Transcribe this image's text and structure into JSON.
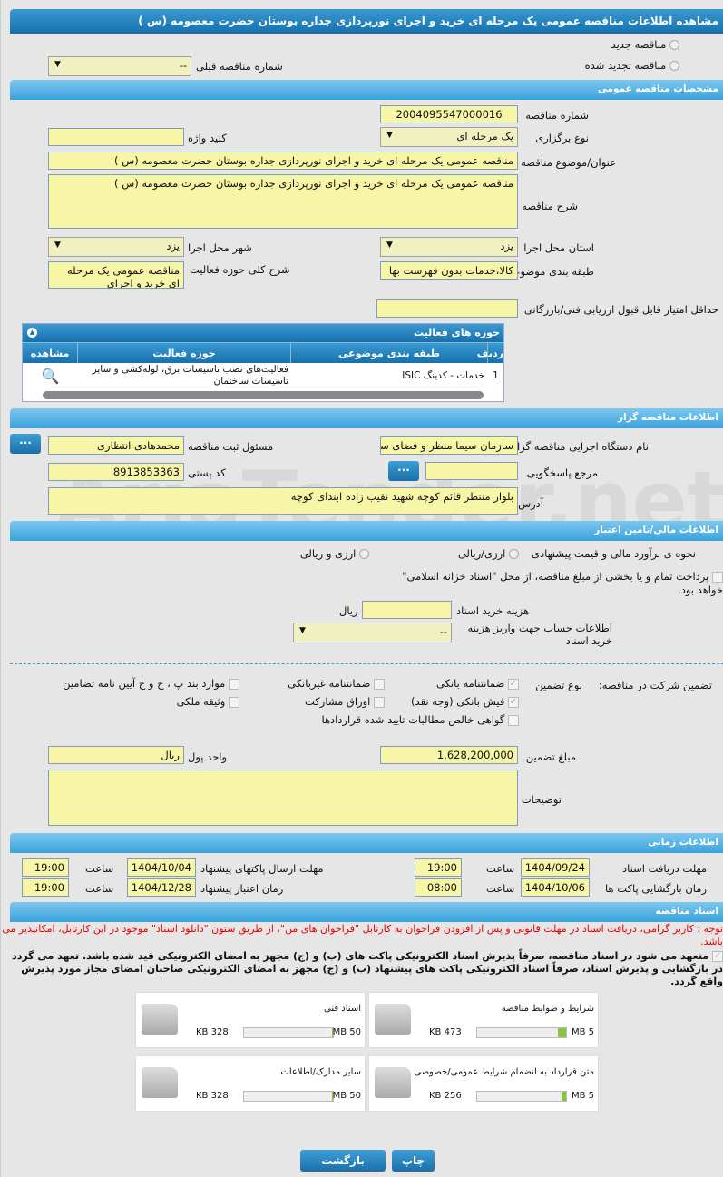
{
  "title": "مشاهده اطلاعات مناقصه عمومی یک مرحله ای خرید و اجرای نورپردازی جداره بوستان حضرت معصومه (س )",
  "radios": {
    "new": "مناقصه جدید",
    "renewed": "مناقصه تجدید شده"
  },
  "prev_number": {
    "label": "شماره مناقصه قبلی",
    "value": "--"
  },
  "general": {
    "header": "مشخصات مناقصه عمومی",
    "number_label": "شماره مناقصه",
    "number": "2004095547000016",
    "type_label": "نوع برگزاری",
    "type": "یک مرحله ای",
    "keyword_label": "کلید واژه",
    "keyword": "",
    "subject_label": "عنوان/موضوع مناقصه",
    "subject": "مناقصه عمومی یک مرحله ای خرید و اجرای نورپردازی جداره بوستان حضرت معصومه (س )",
    "desc_label": "شرح مناقصه",
    "desc": "مناقصه عمومی یک مرحله ای خرید و اجرای نورپردازی جداره بوستان حضرت معصومه (س )",
    "province_label": "استان محل اجرا",
    "province": "یزد",
    "city_label": "شهر محل اجرا",
    "city": "یزد",
    "category_label": "طبقه بندی موضوعی",
    "category": "کالا،خدمات بدون فهرست بها",
    "scope_label": "شرح کلی حوزه فعالیت",
    "scope": "مناقصه عمومی یک مرحله ای خرید و اجرای نورپردازی",
    "min_score_label": "حداقل امتیاز قابل قبول ارزیابی فنی/بازرگانی",
    "min_score": ""
  },
  "activity_grid": {
    "title": "حوزه های فعالیت",
    "columns": [
      "ردیف",
      "طبقه بندی موضوعی",
      "حوزه فعالیت",
      "مشاهده"
    ],
    "rows": [
      {
        "index": "1",
        "category": "خدمات - کدینگ ISIC",
        "activity": "فعالیت‌های نصب تاسیسات برق، لوله‌کشی و سایر تاسیسات ساختمان"
      }
    ]
  },
  "organizer": {
    "header": "اطلاعات مناقصه گزار",
    "org_label": "نام دستگاه اجرایی مناقصه گزار",
    "org": "سازمان سیما منظر و فضای سبز",
    "resp_label": "مسئول ثبت مناقصه",
    "resp": "محمدهادی انتظاری",
    "ref_label": "مرجع پاسخگویی",
    "ref": "",
    "postal_label": "کد پستی",
    "postal": "8913853363",
    "address_label": "آدرس",
    "address": "بلوار منتظر قائم کوچه شهید نقیب زاده ابتدای کوچه",
    "more_button": "..."
  },
  "finance": {
    "header": "اطلاعات مالی/تامین اعتبار",
    "estimate_label": "نحوه ی برآورد مالی و قیمت پیشنهادی",
    "opt1": "ارزی/ریالی",
    "opt2": "ارزی و ریالی",
    "treasury": "پرداخت تمام و یا بخشی از مبلغ مناقصه، از محل \"اسناد خزانه اسلامی\" خواهد بود.",
    "doc_fee_label": "هزینه خرید اسناد",
    "doc_fee": "",
    "doc_fee_unit": "ریال",
    "account_label": "اطلاعات حساب جهت واریز هزینه خرید اسناد",
    "account": "--"
  },
  "guarantee": {
    "label": "تضمین شرکت در مناقصه:",
    "type_label": "نوع تضمین",
    "items": [
      {
        "label": "ضمانتنامه بانکی",
        "checked": true
      },
      {
        "label": "ضمانتنامه غیربانکی",
        "checked": false
      },
      {
        "label": "موارد بند پ ، ح و خ آیین نامه تضامین",
        "checked": false
      },
      {
        "label": "فیش بانکی (وجه نقد)",
        "checked": true
      },
      {
        "label": "اوراق مشارکت",
        "checked": false
      },
      {
        "label": "وثیقه ملکی",
        "checked": false
      },
      {
        "label": "گواهی خالص مطالبات تایید شده قراردادها",
        "checked": false
      }
    ],
    "amount_label": "مبلغ تضمین",
    "amount": "1,628,200,000",
    "currency_label": "واحد پول",
    "currency": "ریال",
    "notes_label": "توضیحات",
    "notes": ""
  },
  "timing": {
    "header": "اطلاعات زمانی",
    "doc_deadline_label": "مهلت دریافت اسناد",
    "doc_deadline": "1404/09/24",
    "doc_deadline_time": "19:00",
    "send_deadline_label": "مهلت ارسال پاکتهای پیشنهاد",
    "send_deadline": "1404/10/04",
    "send_deadline_time": "19:00",
    "open_label": "زمان بازگشایی پاکت ها",
    "open": "1404/10/06",
    "open_time": "08:00",
    "validity_label": "زمان اعتبار پیشنهاد",
    "validity": "1404/12/28",
    "validity_time": "19:00",
    "time_label": "ساعت"
  },
  "documents": {
    "header": "اسناد مناقصه",
    "notice": "توجه : کاربر گرامی، دریافت اسناد در مهلت قانونی و پس از افزودن فراخوان به کارتابل \"فراخوان های من\"، از طریق ستون \"دانلود اسناد\" موجود در این کارتابل، امکانپذیر می باشد.",
    "commitment": "متعهد می شود در اسناد مناقصه، صرفاً پذیرش اسناد الکترونیکی پاکت های (ب) و (ج) مجهز به امضای الکترونیکی قید شده باشد. تعهد می گردد در بازگشایی و پذیرش اسناد، صرفاً اسناد الکترونیکی پاکت های پیشنهاد (ب) و (ج) مجهز به امضای الکترونیکی صاحبان امضای مجاز مورد پذیرش واقع گردد.",
    "files": [
      {
        "name": "شرایط و ضوابط مناقصه",
        "size": "473 KB",
        "max": "5 MB",
        "fill_percent": 9
      },
      {
        "name": "اسناد فنی",
        "size": "328 KB",
        "max": "50 MB",
        "fill_percent": 1
      },
      {
        "name": "متن قرارداد به انضمام شرایط عمومی/خصوصی",
        "size": "256 KB",
        "max": "5 MB",
        "fill_percent": 5
      },
      {
        "name": "سایر مدارک/اطلاعات",
        "size": "328 KB",
        "max": "50 MB",
        "fill_percent": 1
      }
    ]
  },
  "buttons": {
    "print": "چاپ",
    "back": "بازگشت"
  },
  "watermark": "AriaTender.net"
}
